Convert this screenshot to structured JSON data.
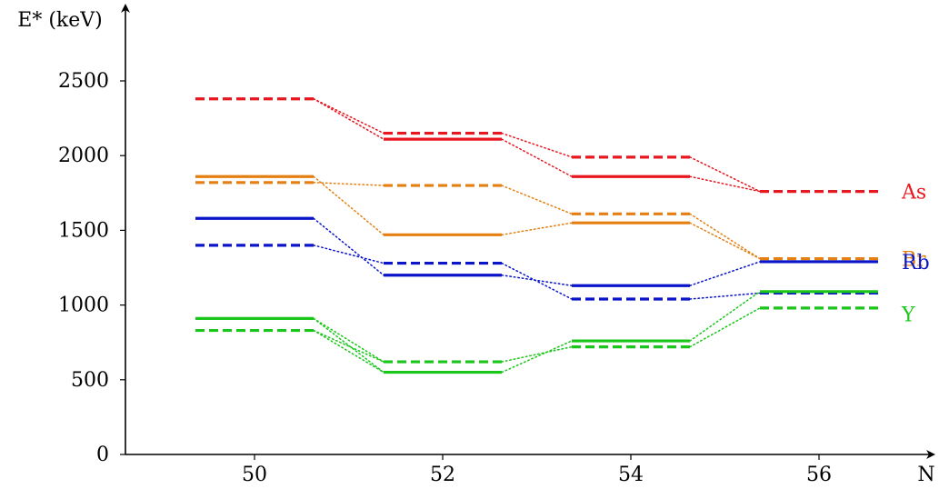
{
  "chart_data": {
    "type": "line",
    "title": "",
    "xlabel": "N",
    "ylabel": "E* (keV)",
    "ylim": [
      0,
      2800
    ],
    "x_ticks": [
      50,
      52,
      54,
      56
    ],
    "y_ticks": [
      0,
      500,
      1000,
      1500,
      2000,
      2500
    ],
    "series": [
      {
        "name": "As",
        "color": "#e8171f",
        "levels": [
          {
            "x": 50,
            "value": 2380,
            "style": "dashed"
          },
          {
            "x": 52,
            "value": 2150,
            "style": "dashed"
          },
          {
            "x": 52,
            "value": 2110,
            "style": "solid"
          },
          {
            "x": 54,
            "value": 1990,
            "style": "dashed"
          },
          {
            "x": 54,
            "value": 1860,
            "style": "solid"
          },
          {
            "x": 56,
            "value": 1760,
            "style": "dashed"
          }
        ],
        "links": [
          [
            0,
            1
          ],
          [
            0,
            2
          ],
          [
            1,
            3
          ],
          [
            2,
            4
          ],
          [
            3,
            5
          ],
          [
            4,
            5
          ]
        ]
      },
      {
        "name": "Br",
        "color": "#e57f12",
        "levels": [
          {
            "x": 50,
            "value": 1860,
            "style": "solid"
          },
          {
            "x": 50,
            "value": 1820,
            "style": "dashed"
          },
          {
            "x": 52,
            "value": 1800,
            "style": "dashed"
          },
          {
            "x": 52,
            "value": 1470,
            "style": "solid"
          },
          {
            "x": 54,
            "value": 1610,
            "style": "dashed"
          },
          {
            "x": 54,
            "value": 1550,
            "style": "solid"
          },
          {
            "x": 56,
            "value": 1310,
            "style": "dashed"
          }
        ],
        "links": [
          [
            0,
            3
          ],
          [
            1,
            2
          ],
          [
            2,
            4
          ],
          [
            3,
            5
          ],
          [
            4,
            6
          ],
          [
            5,
            6
          ]
        ]
      },
      {
        "name": "Rb",
        "color": "#0a14c8",
        "levels": [
          {
            "x": 50,
            "value": 1580,
            "style": "solid"
          },
          {
            "x": 50,
            "value": 1400,
            "style": "dashed"
          },
          {
            "x": 52,
            "value": 1280,
            "style": "dashed"
          },
          {
            "x": 52,
            "value": 1200,
            "style": "solid"
          },
          {
            "x": 54,
            "value": 1130,
            "style": "solid"
          },
          {
            "x": 54,
            "value": 1040,
            "style": "dashed"
          },
          {
            "x": 56,
            "value": 1290,
            "style": "solid"
          },
          {
            "x": 56,
            "value": 1080,
            "style": "dashed"
          }
        ],
        "links": [
          [
            0,
            3
          ],
          [
            1,
            2
          ],
          [
            3,
            4
          ],
          [
            2,
            5
          ],
          [
            4,
            6
          ],
          [
            5,
            7
          ]
        ]
      },
      {
        "name": "Y",
        "color": "#19c619",
        "levels": [
          {
            "x": 50,
            "value": 910,
            "style": "solid"
          },
          {
            "x": 50,
            "value": 830,
            "style": "dashed"
          },
          {
            "x": 52,
            "value": 620,
            "style": "dashed"
          },
          {
            "x": 52,
            "value": 550,
            "style": "solid"
          },
          {
            "x": 54,
            "value": 760,
            "style": "solid"
          },
          {
            "x": 54,
            "value": 720,
            "style": "dashed"
          },
          {
            "x": 56,
            "value": 1090,
            "style": "solid"
          },
          {
            "x": 56,
            "value": 980,
            "style": "dashed"
          }
        ],
        "links": [
          [
            0,
            3
          ],
          [
            0,
            2
          ],
          [
            1,
            2
          ],
          [
            1,
            3
          ],
          [
            3,
            4
          ],
          [
            2,
            5
          ],
          [
            4,
            6
          ],
          [
            5,
            7
          ]
        ]
      }
    ]
  }
}
